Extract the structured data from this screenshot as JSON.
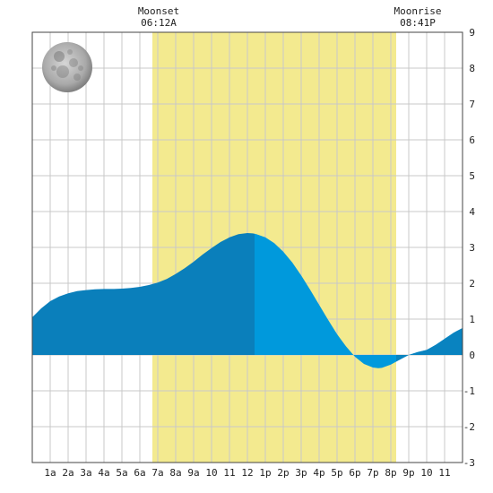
{
  "chart_data": {
    "type": "area",
    "title": "",
    "xlabel": "",
    "ylabel": "",
    "x_unit": "hour of day",
    "xlim": [
      0,
      24
    ],
    "ylim": [
      -3,
      9
    ],
    "x_ticks": [
      "1a",
      "2a",
      "3a",
      "4a",
      "5a",
      "6a",
      "7a",
      "8a",
      "9a",
      "10",
      "11",
      "12",
      "1p",
      "2p",
      "3p",
      "4p",
      "5p",
      "6p",
      "7p",
      "8p",
      "9p",
      "10",
      "11"
    ],
    "y_ticks": [
      "9",
      "8",
      "7",
      "6",
      "5",
      "4",
      "3",
      "2",
      "1",
      "0",
      "-1",
      "-2",
      "-3"
    ],
    "grid": true,
    "daylight": {
      "start": 6.7,
      "end": 20.3,
      "color": "#f3ea8f"
    },
    "moonset": {
      "label": "Moonset",
      "time": "06:12A",
      "hour": 6.2
    },
    "moonrise": {
      "label": "Moonrise",
      "time": "08:41P",
      "hour": 20.68
    },
    "moon_phase": "full-moon",
    "current_hour": 12.4,
    "colors": {
      "past": "#0a7fbb",
      "future": "#0099dc",
      "grid": "#c8c8c8",
      "frame": "#444444"
    },
    "series": [
      {
        "x": [
          0,
          0.5,
          1,
          1.5,
          2,
          2.5,
          3,
          3.5,
          4,
          4.5,
          5,
          5.5,
          6,
          6.5,
          7,
          7.5,
          8,
          8.5,
          9,
          9.5,
          10,
          10.5,
          11,
          11.5,
          12,
          12.3,
          12.5,
          13,
          13.5,
          14,
          14.5,
          15,
          15.5,
          16,
          16.5,
          17,
          17.5,
          18,
          18.5,
          19,
          19.3,
          19.5,
          20,
          20.5,
          21,
          21.5,
          22,
          22.5,
          23,
          23.5,
          24
        ],
        "y": [
          1.05,
          1.3,
          1.5,
          1.63,
          1.72,
          1.78,
          1.81,
          1.83,
          1.84,
          1.84,
          1.85,
          1.87,
          1.9,
          1.95,
          2.02,
          2.12,
          2.26,
          2.42,
          2.6,
          2.8,
          2.98,
          3.15,
          3.28,
          3.37,
          3.4,
          3.39,
          3.37,
          3.28,
          3.12,
          2.88,
          2.58,
          2.22,
          1.82,
          1.4,
          0.98,
          0.58,
          0.24,
          -0.05,
          -0.25,
          -0.35,
          -0.37,
          -0.36,
          -0.27,
          -0.13,
          0.0,
          0.08,
          0.14,
          0.28,
          0.45,
          0.62,
          0.75
        ]
      }
    ]
  }
}
